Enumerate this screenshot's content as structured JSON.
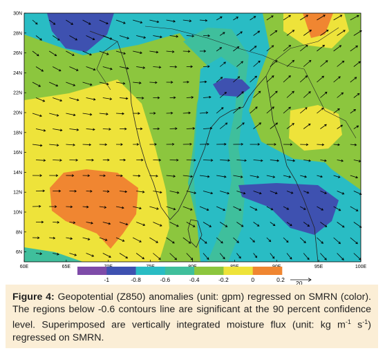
{
  "map": {
    "lat_ticks": [
      "30N",
      "28N",
      "26N",
      "24N",
      "22N",
      "20N",
      "18N",
      "16N",
      "14N",
      "12N",
      "10N",
      "8N",
      "6N"
    ],
    "lon_ticks": [
      "60E",
      "65E",
      "70E",
      "75E",
      "80E",
      "85E",
      "90E",
      "95E",
      "100E"
    ],
    "lon_range": [
      60,
      100
    ],
    "lat_range": [
      5,
      30
    ],
    "colorbar": {
      "colors": [
        "#7e4ba8",
        "#3e51b0",
        "#29bcc4",
        "#3fbf9c",
        "#8cc63e",
        "#eee33a",
        "#f08631"
      ],
      "labels": [
        "-1",
        "-0.8",
        "-0.6",
        "-0.4",
        "-0.2",
        "0",
        "0.2"
      ]
    },
    "reference_vector": {
      "label": "20"
    }
  },
  "caption": {
    "label": "Figure 4:",
    "text": "Geopotential (Z850) anomalies (unit: gpm) regressed on SMRN (color). The regions below -0.6 contours line are significant at the 90 percent confidence level. Superimposed are vertically integrated moisture flux (unit: kg m",
    "sup1": "-1",
    "mid": " s",
    "sup2": "-1",
    "end": ") regressed on SMRN."
  }
}
